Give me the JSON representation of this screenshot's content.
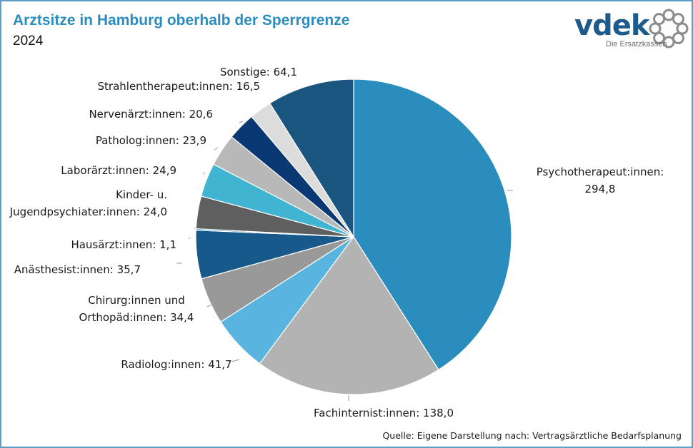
{
  "header": {
    "title": "Arztsitze in Hamburg oberhalb der Sperrgrenze",
    "subtitle": "2024"
  },
  "logo": {
    "wordmark": "vdek",
    "tagline": "Die Ersatzkassen",
    "color": "#1d5b8c",
    "ring_color": "#8c8c8c"
  },
  "chart_data": {
    "type": "pie",
    "title": "Arztsitze in Hamburg oberhalb der Sperrgrenze",
    "subtitle": "2024",
    "start_angle": "12 o'clock, clockwise",
    "slices": [
      {
        "label": "Psychotherapeut:innen",
        "value": 294.8,
        "display": "294,8",
        "color": "#2b8cbe"
      },
      {
        "label": "Fachinternist:innen",
        "value": 138.0,
        "display": "138,0",
        "color": "#b3b3b3"
      },
      {
        "label": "Radiolog:innen",
        "value": 41.7,
        "display": "41,7",
        "color": "#5ab4e0"
      },
      {
        "label": "Chirurg:innen und Orthopäd:innen",
        "value": 34.4,
        "display": "34,4",
        "color": "#999999"
      },
      {
        "label": "Anästhesist:innen",
        "value": 35.7,
        "display": "35,7",
        "color": "#17598a"
      },
      {
        "label": "Hausärzt:innen",
        "value": 1.1,
        "display": "1,1",
        "color": "#2b8cbe"
      },
      {
        "label": "Kinder- u. Jugendpsychiater:innen",
        "value": 24.0,
        "display": "24,0",
        "color": "#5f5f5f"
      },
      {
        "label": "Laborärzt:innen",
        "value": 24.9,
        "display": "24,9",
        "color": "#40b4d0"
      },
      {
        "label": "Patholog:innen",
        "value": 23.9,
        "display": "23,9",
        "color": "#b8b8b8"
      },
      {
        "label": "Nervenärzt:innen",
        "value": 20.6,
        "display": "20,6",
        "color": "#0a3872"
      },
      {
        "label": "Strahlentherapeut:innen",
        "value": 16.5,
        "display": "16,5",
        "color": "#dcdcdc"
      },
      {
        "label": "Sonstige",
        "value": 64.1,
        "display": "64,1",
        "color": "#1a5580"
      }
    ],
    "data_labels": [
      [
        "Psychotherapeut:innen:",
        "294,8"
      ],
      [
        "Fachinternist:innen: 138,0"
      ],
      [
        "Radiolog:innen: 41,7"
      ],
      [
        "Chirurg:innen und",
        "Orthopäd:innen: 34,4"
      ],
      [
        "Anästhesist:innen: 35,7"
      ],
      [
        "Hausärzt:innen: 1,1"
      ],
      [
        "Kinder- u.",
        "Jugendpsychiater:innen: 24,0"
      ],
      [
        "Laborärzt:innen: 24,9"
      ],
      [
        "Patholog:innen: 23,9"
      ],
      [
        "Nervenärzt:innen: 20,6"
      ],
      [
        "Strahlentherapeut:innen: 16,5"
      ],
      [
        "Sonstige: 64,1"
      ]
    ]
  },
  "footer": {
    "source": "Quelle: Eigene Darstellung nach: Vertragsärztliche Bedarfsplanung"
  }
}
